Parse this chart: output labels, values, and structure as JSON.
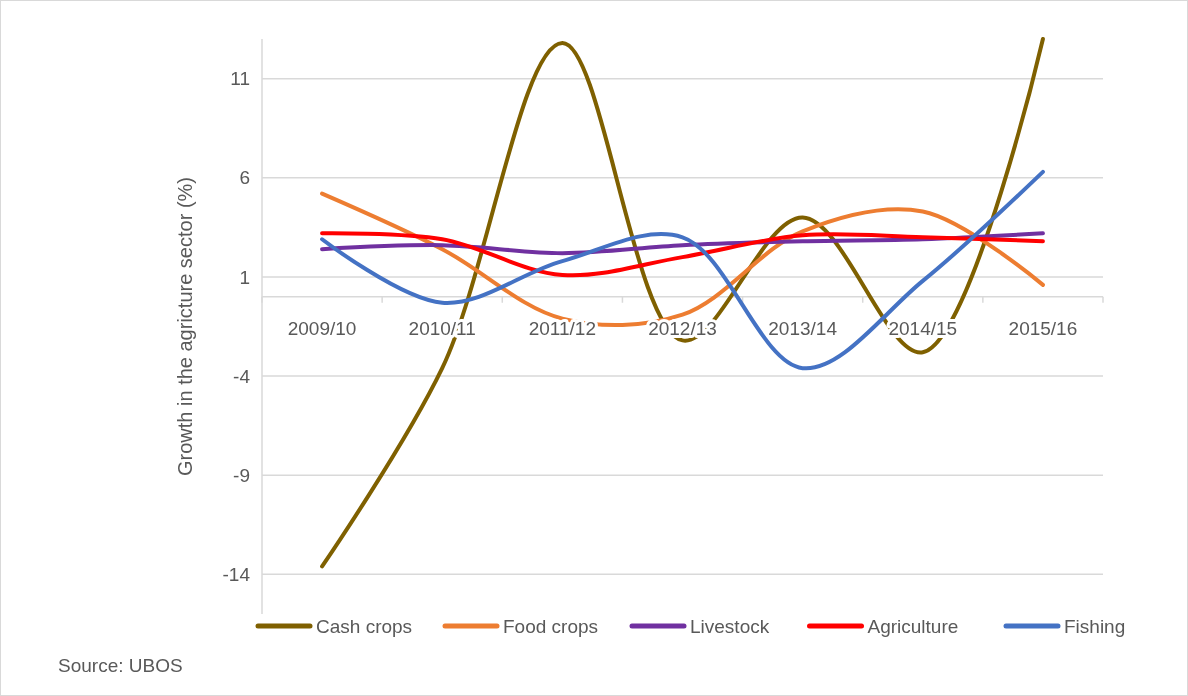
{
  "chart_data": {
    "type": "line",
    "ylabel": "Growth in the agricture sector (%)",
    "categories": [
      "2009/10",
      "2010/11",
      "2011/12",
      "2012/13",
      "2013/14",
      "2014/15",
      "2015/16"
    ],
    "series": [
      {
        "name": "Cash crops",
        "color": "#7f6000",
        "values": [
          -13.6,
          -3.6,
          12.8,
          -2.2,
          4.0,
          -2.8,
          13.0
        ]
      },
      {
        "name": "Food crops",
        "color": "#ed7d31",
        "values": [
          5.2,
          2.4,
          -1.1,
          -0.9,
          3.3,
          4.3,
          0.6
        ]
      },
      {
        "name": "Livestock",
        "color": "#7030a0",
        "values": [
          2.4,
          2.6,
          2.2,
          2.6,
          2.8,
          2.9,
          3.2
        ]
      },
      {
        "name": "Agriculture",
        "color": "#ff0000",
        "values": [
          3.2,
          2.9,
          1.1,
          2.0,
          3.1,
          3.0,
          2.8
        ]
      },
      {
        "name": "Fishing",
        "color": "#4472c4",
        "values": [
          2.9,
          -0.3,
          1.8,
          3.0,
          -3.6,
          0.8,
          6.3
        ]
      }
    ],
    "ylim": [
      -16,
      13
    ],
    "yticks": [
      11,
      6,
      1,
      -4,
      -9,
      -14
    ],
    "grid": "y",
    "legend": "bottom",
    "marker": "none",
    "line_style": "solid",
    "annotations": [
      "Source: UBOS"
    ]
  }
}
